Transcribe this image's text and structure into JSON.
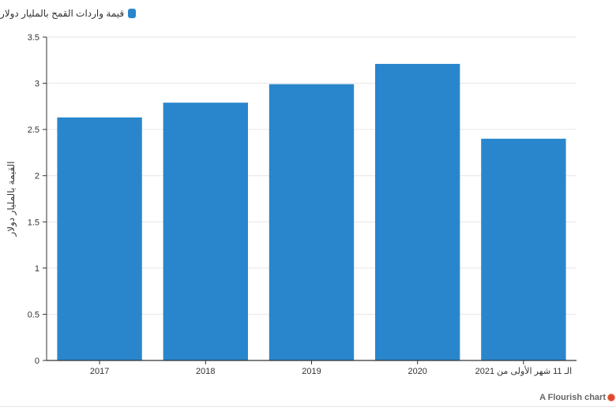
{
  "legend": {
    "label": "قيمة واردات القمح بالمليار دولار",
    "color": "#2986cc"
  },
  "credit": {
    "text": "A Flourish chart",
    "icon": "flourish-logo-icon"
  },
  "chart_data": {
    "type": "bar",
    "categories": [
      "2017",
      "2018",
      "2019",
      "2020",
      "الـ 11 شهر الأولى من 2021"
    ],
    "series": [
      {
        "name": "قيمة واردات القمح بالمليار دولار",
        "values": [
          2.63,
          2.79,
          2.99,
          3.21,
          2.4
        ]
      }
    ],
    "ylabel": "القيمة بالمليار دولار",
    "xlabel": "",
    "ylim": [
      0,
      3.5
    ],
    "yticks": [
      0,
      0.5,
      1,
      1.5,
      2,
      2.5,
      3,
      3.5
    ],
    "grid": true,
    "legend_position": "top-left",
    "bar_color": "#2986cc"
  }
}
